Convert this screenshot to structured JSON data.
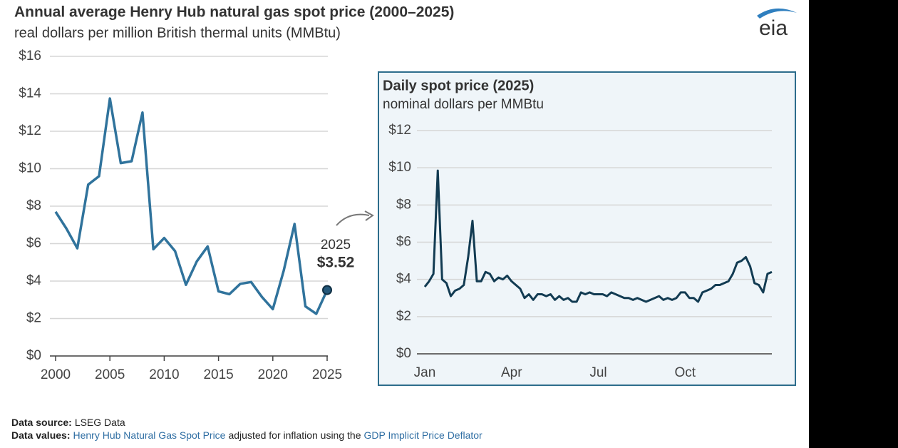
{
  "header": {
    "title": "Annual average Henry Hub natural gas spot price (2000–2025)",
    "subtitle": "real dollars per million British thermal units (MMBtu)",
    "logo": "eia"
  },
  "chart_data": [
    {
      "type": "line",
      "color": "#30739c",
      "grid": true,
      "x": [
        2000,
        2001,
        2002,
        2003,
        2004,
        2005,
        2006,
        2007,
        2008,
        2009,
        2010,
        2011,
        2012,
        2013,
        2014,
        2015,
        2016,
        2017,
        2018,
        2019,
        2020,
        2021,
        2022,
        2023,
        2024,
        2025
      ],
      "values": [
        7.7,
        6.8,
        5.75,
        9.15,
        9.6,
        13.75,
        10.3,
        10.4,
        13.0,
        5.7,
        6.3,
        5.6,
        3.8,
        5.05,
        5.85,
        3.45,
        3.3,
        3.85,
        3.95,
        3.15,
        2.5,
        4.55,
        7.05,
        2.65,
        2.25,
        3.52
      ],
      "value_labels": [
        null,
        null,
        null,
        null,
        null,
        null,
        null,
        null,
        null,
        null,
        null,
        null,
        null,
        null,
        null,
        null,
        null,
        null,
        null,
        null,
        null,
        null,
        null,
        null,
        null,
        "$3.52"
      ],
      "annotation": "2025",
      "xlim": [
        2000,
        2025
      ],
      "xticks": [
        2000,
        2005,
        2010,
        2015,
        2020,
        2025
      ],
      "ylim": [
        0,
        16
      ],
      "yticks": [
        {
          "value": 0,
          "label": "$0"
        },
        {
          "value": 2,
          "label": "$2"
        },
        {
          "value": 4,
          "label": "$4"
        },
        {
          "value": 6,
          "label": "$6"
        },
        {
          "value": 8,
          "label": "$8"
        },
        {
          "value": 10,
          "label": "$10"
        },
        {
          "value": 12,
          "label": "$12"
        },
        {
          "value": 14,
          "label": "$14"
        },
        {
          "value": 16,
          "label": "$16"
        }
      ]
    },
    {
      "type": "line",
      "title": "Daily spot price (2025)",
      "subtitle": "nominal dollars per MMBtu",
      "color": "#123b52",
      "grid": true,
      "categories": [
        "Jan",
        null,
        null,
        null,
        null,
        null,
        null,
        null,
        null,
        null,
        null,
        null,
        null,
        null,
        null,
        null,
        null,
        null,
        null,
        null,
        "Apr",
        null,
        null,
        null,
        null,
        null,
        null,
        null,
        null,
        null,
        null,
        null,
        null,
        null,
        null,
        null,
        null,
        null,
        null,
        null,
        "Jul",
        null,
        null,
        null,
        null,
        null,
        null,
        null,
        null,
        null,
        null,
        null,
        null,
        null,
        null,
        null,
        null,
        null,
        null,
        null,
        "Oct",
        null,
        null,
        null,
        null,
        null,
        null,
        null,
        null,
        null,
        null,
        null,
        null,
        null,
        null,
        null,
        null,
        null,
        null,
        null,
        null
      ],
      "values": [
        3.6,
        3.9,
        4.3,
        9.85,
        4.0,
        3.8,
        3.1,
        3.4,
        3.5,
        3.7,
        5.2,
        7.15,
        3.9,
        3.9,
        4.4,
        4.3,
        3.9,
        4.1,
        4.0,
        4.2,
        3.9,
        3.7,
        3.5,
        3.0,
        3.2,
        2.9,
        3.2,
        3.2,
        3.1,
        3.2,
        2.9,
        3.1,
        2.9,
        3.0,
        2.8,
        2.8,
        3.3,
        3.2,
        3.3,
        3.2,
        3.2,
        3.2,
        3.1,
        3.3,
        3.2,
        3.1,
        3.0,
        3.0,
        2.9,
        3.0,
        2.9,
        2.8,
        2.9,
        3.0,
        3.1,
        2.9,
        3.0,
        2.9,
        3.0,
        3.3,
        3.3,
        3.0,
        3.0,
        2.8,
        3.3,
        3.4,
        3.5,
        3.7,
        3.7,
        3.8,
        3.9,
        4.3,
        4.9,
        5.0,
        5.2,
        4.7,
        3.8,
        3.7,
        3.3,
        4.3,
        4.4
      ],
      "ylim": [
        0,
        12
      ],
      "yticks": [
        {
          "value": 0,
          "label": "$0"
        },
        {
          "value": 2,
          "label": "$2"
        },
        {
          "value": 4,
          "label": "$4"
        },
        {
          "value": 6,
          "label": "$6"
        },
        {
          "value": 8,
          "label": "$8"
        },
        {
          "value": 10,
          "label": "$10"
        },
        {
          "value": 12,
          "label": "$12"
        }
      ]
    }
  ],
  "footer": {
    "source_label": "Data source:",
    "source": "LSEG Data",
    "values_label": "Data values:",
    "link1": "Henry Hub Natural Gas Spot Price",
    "middle": "adjusted for inflation using the",
    "link2": "GDP Implicit Price Deflator"
  }
}
